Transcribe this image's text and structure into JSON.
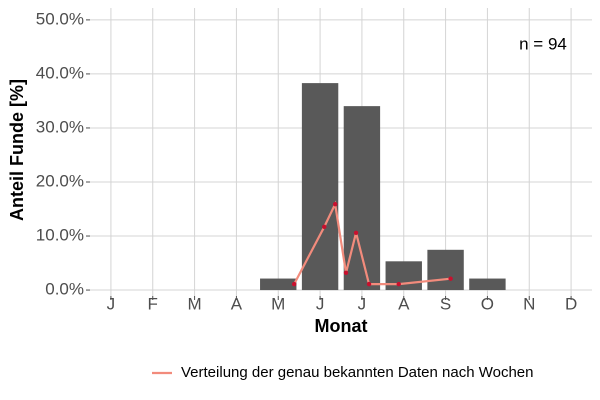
{
  "chart_data": {
    "type": "bar",
    "categories": [
      "J",
      "F",
      "M",
      "A",
      "M",
      "J",
      "J",
      "A",
      "S",
      "O",
      "N",
      "D"
    ],
    "values": [
      0,
      0,
      0,
      0,
      2.13,
      38.3,
      34.04,
      5.32,
      7.45,
      2.13,
      0,
      0
    ],
    "color": "#595959",
    "overlay": {
      "type": "line",
      "name": "Verteilung der genau bekannten Daten nach Wochen",
      "color": "#f28b7c",
      "marker_color": "#c8102e",
      "x": [
        5.38,
        6.1,
        6.36,
        6.62,
        6.86,
        7.17,
        7.88,
        9.12
      ],
      "values": [
        1.1,
        11.7,
        15.9,
        3.2,
        10.6,
        1.1,
        1.1,
        2.1
      ]
    },
    "xlim": [
      0.5,
      12.5
    ],
    "ylim": [
      -1.1,
      52.2
    ],
    "yticks": [
      {
        "value": 0,
        "label": "0.0%"
      },
      {
        "value": 10,
        "label": "10.0%"
      },
      {
        "value": 20,
        "label": "20.0%"
      },
      {
        "value": 30,
        "label": "30.0%"
      },
      {
        "value": 40,
        "label": "40.0%"
      },
      {
        "value": 50,
        "label": "50.0%"
      }
    ],
    "grid": true,
    "xlabel": "Monat",
    "ylabel": "Anteil Funde [%]",
    "annotation": "n = 94",
    "legend": "bottom"
  }
}
